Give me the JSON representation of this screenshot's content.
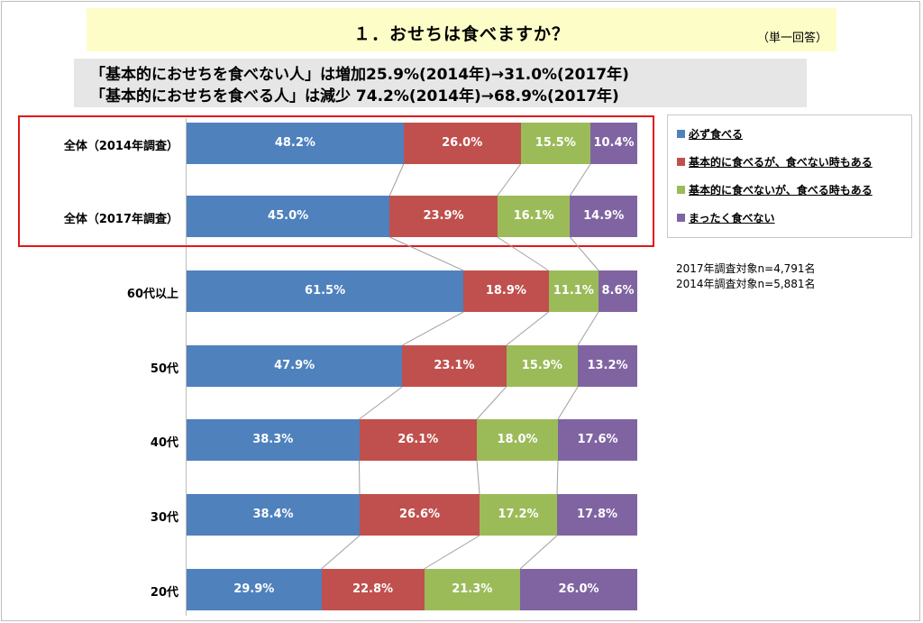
{
  "header": {
    "title": "１．おせちは食べますか？",
    "answer_type": "（単一回答）"
  },
  "headlines": [
    "「基本的におせちを食べない人」は増加25.9%(2014年)→31.0%(2017年)",
    "「基本的におせちを食べる人」は減少 74.2%(2014年)→68.9%(2017年)"
  ],
  "sample_notes": [
    "2017年調査対象n=4,791名",
    "2014年調査対象n=5,881名"
  ],
  "chart_data": {
    "type": "bar",
    "orientation": "horizontal",
    "stacked": true,
    "percent_stacked": true,
    "categories": [
      "全体（2014年調査）",
      "全体（2017年調査）",
      "60代以上",
      "50代",
      "40代",
      "30代",
      "20代"
    ],
    "series": [
      {
        "name": "必ず食べる",
        "color": "#4f81bd",
        "values": [
          48.2,
          45.0,
          61.5,
          47.9,
          38.3,
          38.4,
          29.9
        ]
      },
      {
        "name": "基本的に食べるが、食べない時もある",
        "color": "#c0504d",
        "values": [
          26.0,
          23.9,
          18.9,
          23.1,
          26.1,
          26.6,
          22.8
        ]
      },
      {
        "name": "基本的に食べないが、食べる時もある",
        "color": "#9bbb59",
        "values": [
          15.5,
          16.1,
          11.1,
          15.9,
          18.0,
          17.2,
          21.3
        ]
      },
      {
        "name": "まったく食べない",
        "color": "#8064a2",
        "values": [
          10.4,
          14.9,
          8.6,
          13.2,
          17.6,
          17.8,
          26.0
        ]
      }
    ],
    "data_labels": [
      [
        "48.2%",
        "26.0%",
        "15.5%",
        "10.4%"
      ],
      [
        "45.0%",
        "23.9%",
        "16.1%",
        "14.9%"
      ],
      [
        "61.5%",
        "18.9%",
        "11.1%",
        "8.6%"
      ],
      [
        "47.9%",
        "23.1%",
        "15.9%",
        "13.2%"
      ],
      [
        "38.3%",
        "26.1%",
        "18.0%",
        "17.6%"
      ],
      [
        "38.4%",
        "26.6%",
        "17.2%",
        "17.8%"
      ],
      [
        "29.9%",
        "22.8%",
        "21.3%",
        "26.0%"
      ]
    ],
    "xlim": [
      0,
      100
    ],
    "legend_position": "top-right",
    "highlighted_categories": [
      "全体（2014年調査）",
      "全体（2017年調査）"
    ]
  }
}
